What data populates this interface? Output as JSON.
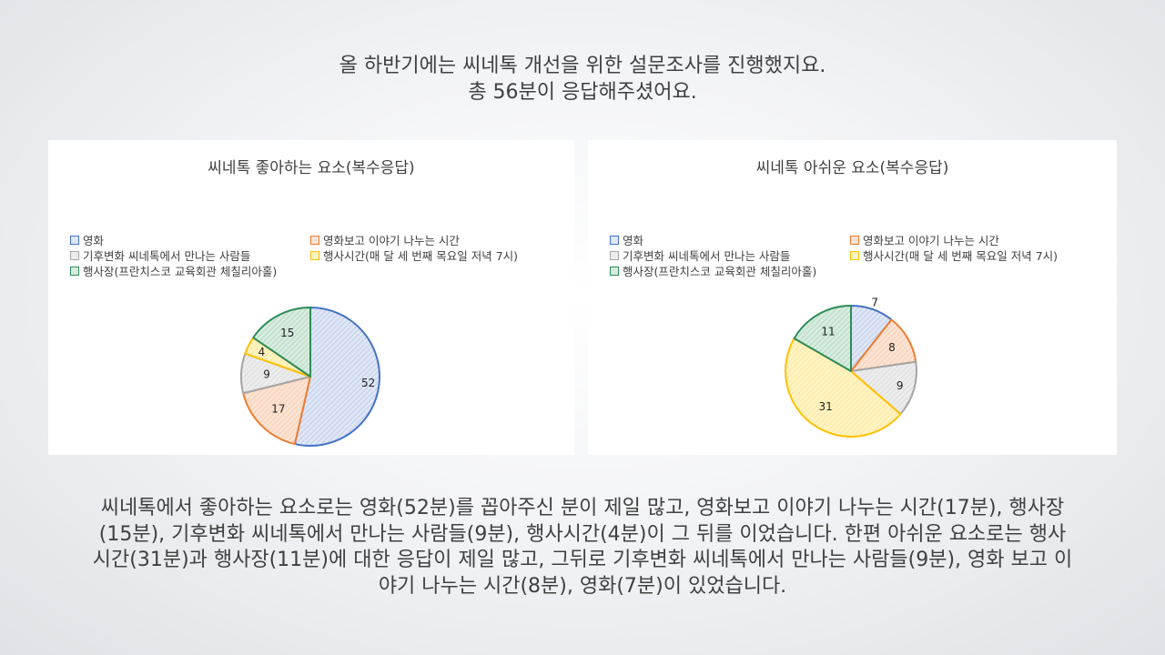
{
  "heading": {
    "line1": "올 하반기에는 씨네톡 개선을 위한 설문조사를 진행했지요.",
    "line2": "총 56분이 응답해주셨어요."
  },
  "summary": {
    "line1": "씨네톡에서 좋아하는 요소로는 영화(52분)를 꼽아주신 분이 제일 많고, 영화보고 이야기 나누는 시간(17분), 행사장",
    "line2": "(15분), 기후변화 씨네톡에서 만나는 사람들(9분), 행사시간(4분)이 그 뒤를 이었습니다. 한편 아쉬운 요소로는 행사",
    "line3": "시간(31분)과 행사장(11분)에 대한 응답이 제일 많고, 그뒤로 기후변화 씨네톡에서 만나는 사람들(9분), 영화 보고 이",
    "line4": "야기 나누는 시간(8분), 영화(7분)이  있었습니다."
  },
  "chart_data": [
    {
      "type": "pie",
      "title": "씨네톡 좋아하는 요소(복수응답)",
      "categories": [
        "영화",
        "영화보고 이야기 나누는 시간",
        "기후변화 씨네톡에서 만나는 사람들",
        "행사시간(매 달 세 번째 목요일 저녁 7시)",
        "행사장(프란치스코 교육회관 체칠리아홀)"
      ],
      "values": [
        52,
        17,
        9,
        4,
        15
      ],
      "colors": [
        "#4472c4",
        "#ed7d31",
        "#a5a5a5",
        "#ffc000",
        "#2e8b57"
      ],
      "legend": "top"
    },
    {
      "type": "pie",
      "title": "씨네톡 아쉬운 요소(복수응답)",
      "categories": [
        "영화",
        "영화보고 이야기 나누는 시간",
        "기후변화 씨네톡에서 만나는 사람들",
        "행사시간(매 달 세 번째 목요일 저녁 7시)",
        "행사장(프란치스코 교육회관 체칠리아홀)"
      ],
      "values": [
        7,
        8,
        9,
        31,
        11
      ],
      "colors": [
        "#4472c4",
        "#ed7d31",
        "#a5a5a5",
        "#ffc000",
        "#2e8b57"
      ],
      "legend": "top"
    }
  ]
}
